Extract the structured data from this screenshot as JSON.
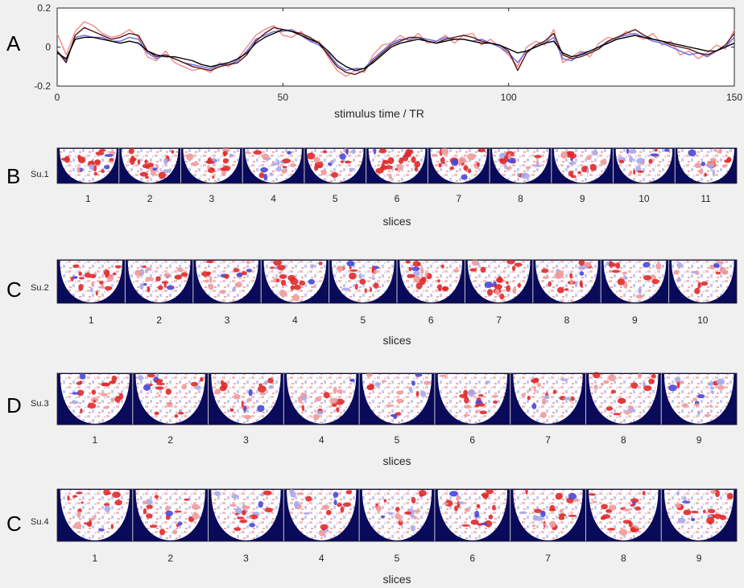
{
  "colors": {
    "background": "#f0f0f0",
    "brain_bg": "#0a0a5a",
    "trace_black": "#000000",
    "trace_dark": "#5a1414",
    "trace_blue": "#6a6ae0",
    "trace_red": "#f08a8a"
  },
  "chart_data": [
    {
      "type": "line",
      "panel": "A",
      "xlabel": "stimulus time / TR",
      "ylabel": "",
      "xlim": [
        0,
        150
      ],
      "ylim": [
        -0.2,
        0.2
      ],
      "xticks": [
        "0",
        "50",
        "100",
        "150"
      ],
      "yticks": [
        "0.2",
        "0",
        "-0.2"
      ],
      "grid": false,
      "x": [
        0,
        2,
        4,
        6,
        8,
        10,
        12,
        14,
        16,
        18,
        20,
        22,
        24,
        26,
        28,
        30,
        32,
        34,
        36,
        38,
        40,
        42,
        44,
        46,
        48,
        50,
        52,
        54,
        56,
        58,
        60,
        62,
        64,
        66,
        68,
        70,
        72,
        74,
        76,
        78,
        80,
        82,
        84,
        86,
        88,
        90,
        92,
        94,
        96,
        98,
        100,
        102,
        104,
        106,
        108,
        110,
        112,
        114,
        116,
        118,
        120,
        122,
        124,
        126,
        128,
        130,
        132,
        134,
        136,
        138,
        140,
        142,
        144,
        146,
        148,
        150
      ],
      "series": [
        {
          "color_key": "trace_black",
          "values": [
            -0.03,
            -0.06,
            0.04,
            0.05,
            0.05,
            0.04,
            0.03,
            0.02,
            0.03,
            0.02,
            -0.02,
            -0.04,
            -0.05,
            -0.05,
            -0.06,
            -0.07,
            -0.09,
            -0.1,
            -0.09,
            -0.08,
            -0.06,
            -0.03,
            0.02,
            0.05,
            0.07,
            0.09,
            0.08,
            0.06,
            0.04,
            0.02,
            -0.02,
            -0.07,
            -0.1,
            -0.12,
            -0.11,
            -0.08,
            -0.04,
            0.0,
            0.02,
            0.03,
            0.04,
            0.03,
            0.02,
            0.03,
            0.04,
            0.04,
            0.03,
            0.02,
            0.02,
            0.01,
            -0.01,
            -0.03,
            -0.02,
            0.0,
            0.02,
            0.03,
            -0.03,
            -0.05,
            -0.04,
            -0.02,
            0.0,
            0.02,
            0.04,
            0.05,
            0.06,
            0.05,
            0.04,
            0.03,
            0.02,
            0.01,
            0.0,
            -0.01,
            -0.02,
            -0.02,
            0.0,
            0.02
          ]
        },
        {
          "color_key": "trace_dark",
          "values": [
            -0.02,
            -0.08,
            0.06,
            0.1,
            0.08,
            0.06,
            0.04,
            0.05,
            0.07,
            0.06,
            -0.02,
            -0.05,
            -0.04,
            -0.06,
            -0.08,
            -0.1,
            -0.11,
            -0.12,
            -0.1,
            -0.09,
            -0.08,
            -0.04,
            0.03,
            0.07,
            0.1,
            0.09,
            0.08,
            0.07,
            0.05,
            0.02,
            -0.04,
            -0.1,
            -0.13,
            -0.14,
            -0.12,
            -0.07,
            -0.03,
            0.01,
            0.03,
            0.05,
            0.05,
            0.03,
            0.02,
            0.04,
            0.05,
            0.06,
            0.05,
            0.03,
            0.02,
            0.01,
            -0.02,
            -0.12,
            -0.03,
            0.01,
            0.03,
            0.07,
            -0.04,
            -0.06,
            -0.05,
            -0.03,
            -0.01,
            0.03,
            0.05,
            0.07,
            0.09,
            0.06,
            0.04,
            0.03,
            0.01,
            0.0,
            -0.01,
            -0.03,
            -0.04,
            -0.02,
            0.01,
            0.07
          ]
        },
        {
          "color_key": "trace_blue",
          "values": [
            -0.02,
            -0.07,
            0.05,
            0.06,
            0.05,
            0.05,
            0.03,
            0.03,
            0.05,
            0.04,
            -0.03,
            -0.06,
            -0.04,
            -0.06,
            -0.08,
            -0.09,
            -0.1,
            -0.11,
            -0.09,
            -0.09,
            -0.07,
            -0.02,
            0.04,
            0.06,
            0.08,
            0.08,
            0.09,
            0.06,
            0.03,
            0.01,
            -0.03,
            -0.09,
            -0.12,
            -0.11,
            -0.11,
            -0.06,
            -0.02,
            0.02,
            0.04,
            0.04,
            0.05,
            0.04,
            0.03,
            0.05,
            0.04,
            0.04,
            0.03,
            0.04,
            0.02,
            0.0,
            -0.03,
            -0.08,
            -0.02,
            0.0,
            0.02,
            0.05,
            -0.06,
            -0.07,
            -0.03,
            -0.02,
            0.0,
            0.03,
            0.05,
            0.06,
            0.07,
            0.05,
            0.03,
            0.02,
            0.0,
            -0.02,
            -0.04,
            -0.03,
            -0.05,
            -0.02,
            0.0,
            0.05
          ]
        },
        {
          "color_key": "trace_red",
          "values": [
            0.07,
            -0.04,
            0.08,
            0.13,
            0.11,
            0.07,
            0.05,
            0.06,
            0.09,
            0.05,
            -0.05,
            -0.07,
            -0.02,
            -0.08,
            -0.1,
            -0.12,
            -0.11,
            -0.13,
            -0.08,
            -0.1,
            -0.06,
            0.0,
            0.06,
            0.09,
            0.11,
            0.06,
            0.05,
            0.08,
            0.03,
            0.03,
            -0.05,
            -0.12,
            -0.15,
            -0.12,
            -0.13,
            -0.04,
            0.01,
            0.02,
            0.06,
            0.03,
            0.07,
            0.02,
            0.03,
            0.06,
            0.02,
            0.06,
            0.07,
            0.01,
            0.04,
            0.0,
            -0.04,
            -0.1,
            0.0,
            0.03,
            0.01,
            0.09,
            -0.08,
            -0.05,
            -0.02,
            -0.05,
            0.02,
            0.05,
            0.04,
            0.08,
            0.06,
            0.04,
            0.07,
            0.01,
            0.03,
            -0.04,
            -0.02,
            -0.06,
            -0.03,
            0.01,
            -0.01,
            0.09
          ]
        }
      ]
    },
    {
      "type": "heatmap",
      "panel": "B",
      "subject": "Su.1",
      "xlabel": "slices",
      "slices": [
        "1",
        "2",
        "3",
        "4",
        "5",
        "6",
        "7",
        "8",
        "9",
        "10",
        "11"
      ],
      "slice_intensity": [
        0.8,
        0.8,
        0.7,
        0.5,
        0.6,
        0.8,
        0.75,
        0.6,
        0.55,
        0.4,
        0.4
      ]
    },
    {
      "type": "heatmap",
      "panel": "C",
      "subject": "Su.2",
      "xlabel": "slices",
      "slices": [
        "1",
        "2",
        "3",
        "4",
        "5",
        "6",
        "7",
        "8",
        "9",
        "10"
      ],
      "slice_intensity": [
        0.75,
        0.7,
        0.5,
        0.75,
        0.7,
        0.8,
        0.75,
        0.7,
        0.5,
        0.5
      ]
    },
    {
      "type": "heatmap",
      "panel": "D",
      "subject": "Su.3",
      "xlabel": "slices",
      "slices": [
        "1",
        "2",
        "3",
        "4",
        "5",
        "6",
        "7",
        "8",
        "9"
      ],
      "slice_intensity": [
        0.7,
        0.75,
        0.65,
        0.4,
        0.55,
        0.6,
        0.6,
        0.65,
        0.55
      ]
    },
    {
      "type": "heatmap",
      "panel": "C",
      "subject": "Su.4",
      "xlabel": "slices",
      "slices": [
        "1",
        "2",
        "3",
        "4",
        "5",
        "6",
        "7",
        "8",
        "9"
      ],
      "slice_intensity": [
        0.7,
        0.65,
        0.7,
        0.75,
        0.55,
        0.85,
        0.8,
        0.8,
        0.75
      ]
    }
  ]
}
